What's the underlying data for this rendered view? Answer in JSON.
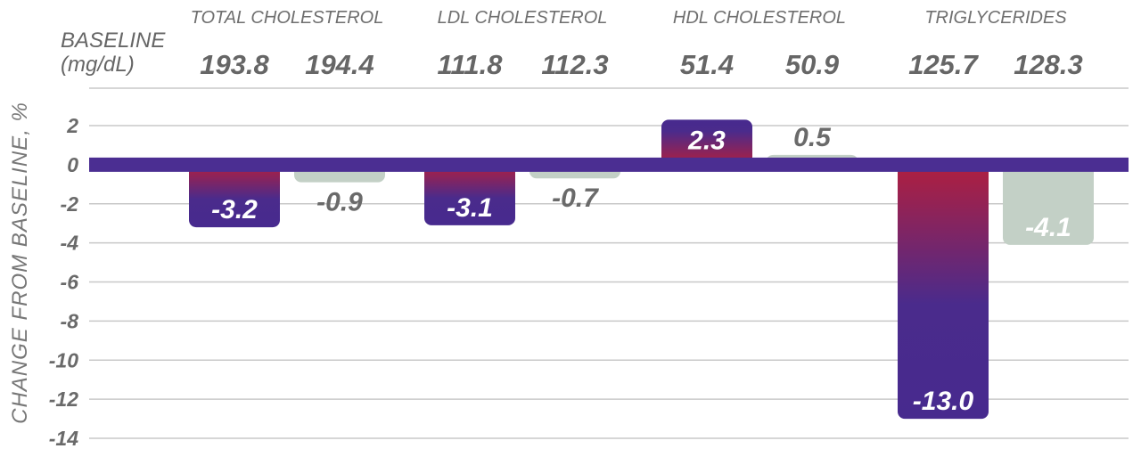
{
  "chart_data": {
    "type": "bar",
    "title": "",
    "ylabel": "CHANGE FROM BASELINE, %",
    "baseline_label_line1": "BASELINE",
    "baseline_label_line2": "(mg/dL)",
    "categories": [
      "TOTAL CHOLESTEROL",
      "LDL CHOLESTEROL",
      "HDL CHOLESTEROL",
      "TRIGLYCERIDES"
    ],
    "yticks": [
      "2",
      "0",
      "-2",
      "-4",
      "-6",
      "-8",
      "-10",
      "-12",
      "-14"
    ],
    "ylim": [
      -14,
      2
    ],
    "grid": true,
    "colors": {
      "primary_top": "#b01f3f",
      "primary_bottom": "#4a2b8c",
      "secondary": "#c3d0c6",
      "zero_line": "#4b2e92",
      "grid": "#c8c8c8"
    },
    "series": [
      {
        "values": [
          -3.2,
          -3.1,
          2.3,
          -13.0
        ],
        "value_labels": [
          "-3.2",
          "-3.1",
          "2.3",
          "-13.0"
        ],
        "baseline": [
          "193.8",
          "111.8",
          "51.4",
          "125.7"
        ]
      },
      {
        "values": [
          -0.9,
          -0.7,
          0.5,
          -4.1
        ],
        "value_labels": [
          "-0.9",
          "-0.7",
          "0.5",
          "-4.1"
        ],
        "baseline": [
          "194.4",
          "112.3",
          "50.9",
          "128.3"
        ]
      }
    ]
  }
}
